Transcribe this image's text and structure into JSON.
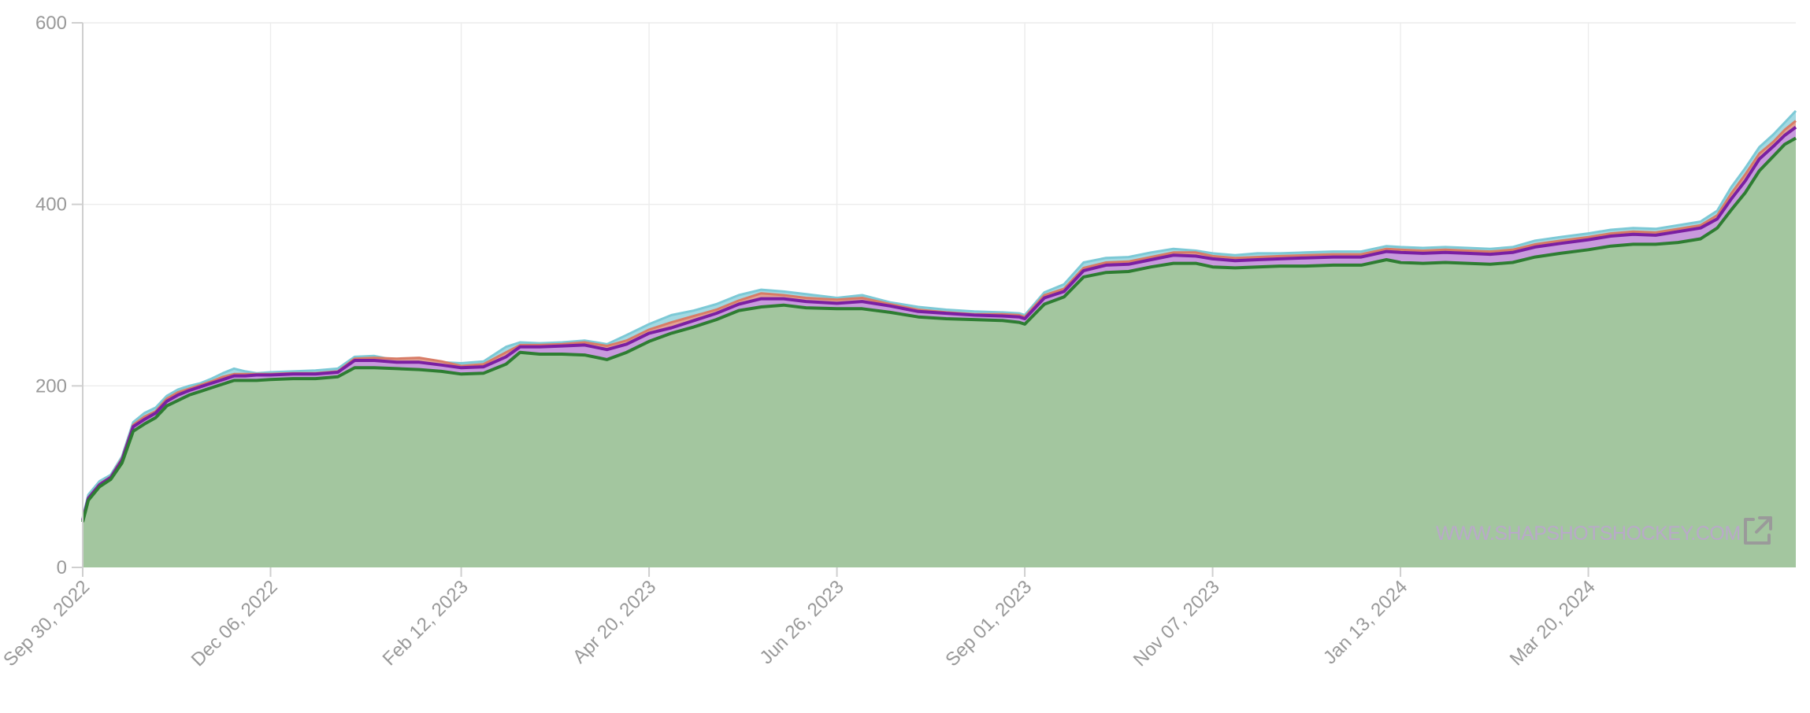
{
  "chart_data": {
    "type": "area",
    "title": "",
    "xlabel": "",
    "ylabel": "",
    "ylim": [
      0,
      600
    ],
    "yticks": [
      0,
      200,
      400,
      600
    ],
    "ytick_labels": [
      "0",
      "200",
      "400",
      "600"
    ],
    "xlim": [
      "2022-09-30",
      "2024-06-02"
    ],
    "xtick_dates": [
      "2022-09-30",
      "2022-12-06",
      "2023-02-12",
      "2023-04-20",
      "2023-06-26",
      "2023-09-01",
      "2023-11-07",
      "2024-01-13",
      "2024-03-20"
    ],
    "xtick_labels": [
      "Sep 30, 2022",
      "Dec 06, 2022",
      "Feb 12, 2023",
      "Apr 20, 2023",
      "Jun 26, 2023",
      "Sep 01, 2023",
      "Nov 07, 2023",
      "Jan 13, 2024",
      "Mar 20, 2024"
    ],
    "grid": true,
    "legend": "none",
    "x": [
      "2022-09-30",
      "2022-10-02",
      "2022-10-06",
      "2022-10-10",
      "2022-10-14",
      "2022-10-18",
      "2022-10-22",
      "2022-10-26",
      "2022-10-30",
      "2022-11-03",
      "2022-11-07",
      "2022-11-11",
      "2022-11-15",
      "2022-11-19",
      "2022-11-23",
      "2022-11-27",
      "2022-12-01",
      "2022-12-06",
      "2022-12-14",
      "2022-12-22",
      "2022-12-30",
      "2023-01-05",
      "2023-01-12",
      "2023-01-20",
      "2023-01-28",
      "2023-02-05",
      "2023-02-12",
      "2023-02-20",
      "2023-02-28",
      "2023-03-05",
      "2023-03-12",
      "2023-03-20",
      "2023-03-28",
      "2023-04-05",
      "2023-04-12",
      "2023-04-20",
      "2023-04-28",
      "2023-05-06",
      "2023-05-14",
      "2023-05-22",
      "2023-05-30",
      "2023-06-07",
      "2023-06-15",
      "2023-06-26",
      "2023-07-05",
      "2023-07-15",
      "2023-07-25",
      "2023-08-04",
      "2023-08-14",
      "2023-08-24",
      "2023-08-30",
      "2023-09-01",
      "2023-09-08",
      "2023-09-15",
      "2023-09-22",
      "2023-09-30",
      "2023-10-08",
      "2023-10-16",
      "2023-10-24",
      "2023-11-01",
      "2023-11-07",
      "2023-11-15",
      "2023-11-23",
      "2023-12-01",
      "2023-12-10",
      "2023-12-20",
      "2023-12-30",
      "2024-01-08",
      "2024-01-13",
      "2024-01-21",
      "2024-01-29",
      "2024-02-06",
      "2024-02-14",
      "2024-02-22",
      "2024-03-01",
      "2024-03-10",
      "2024-03-20",
      "2024-03-28",
      "2024-04-05",
      "2024-04-13",
      "2024-04-21",
      "2024-04-29",
      "2024-05-05",
      "2024-05-10",
      "2024-05-15",
      "2024-05-20",
      "2024-05-25",
      "2024-05-29",
      "2024-06-02"
    ],
    "series": [
      {
        "color": "#9ed7e0",
        "stroke": "#7cc9d6",
        "values": [
          55,
          80,
          95,
          102,
          122,
          160,
          170,
          176,
          189,
          196,
          200,
          203,
          208,
          214,
          219,
          216,
          214,
          215,
          216,
          217,
          219,
          232,
          233,
          228,
          229,
          226,
          225,
          227,
          243,
          248,
          247,
          248,
          250,
          246,
          256,
          268,
          278,
          283,
          290,
          300,
          306,
          304,
          301,
          297,
          300,
          292,
          287,
          284,
          282,
          281,
          280,
          278,
          303,
          312,
          336,
          341,
          342,
          347,
          351,
          349,
          346,
          344,
          346,
          346,
          347,
          348,
          348,
          354,
          353,
          352,
          353,
          352,
          351,
          353,
          360,
          364,
          368,
          372,
          374,
          373,
          377,
          381,
          393,
          419,
          440,
          463,
          477,
          490,
          503
        ]
      },
      {
        "color": "#e6a08f",
        "stroke": "#d87c66",
        "values": [
          53,
          77,
          92,
          100,
          120,
          157,
          166,
          172,
          186,
          193,
          197,
          201,
          205,
          210,
          213,
          213,
          213,
          213,
          214,
          214,
          216,
          230,
          231,
          230,
          231,
          227,
          222,
          224,
          237,
          245,
          245,
          246,
          248,
          244,
          250,
          262,
          270,
          277,
          284,
          294,
          302,
          300,
          297,
          295,
          297,
          290,
          284,
          281,
          279,
          279,
          278,
          276,
          300,
          307,
          330,
          336,
          337,
          342,
          347,
          347,
          343,
          341,
          342,
          343,
          344,
          345,
          345,
          351,
          350,
          349,
          350,
          349,
          348,
          350,
          356,
          360,
          364,
          368,
          370,
          369,
          373,
          377,
          388,
          412,
          433,
          456,
          469,
          482,
          492
        ]
      },
      {
        "color": "#c69ae0",
        "stroke": "#7a1fa2",
        "values": [
          52,
          76,
          91,
          99,
          118,
          155,
          163,
          170,
          183,
          190,
          195,
          199,
          203,
          207,
          211,
          211,
          212,
          212,
          213,
          213,
          215,
          228,
          228,
          226,
          226,
          223,
          220,
          221,
          232,
          243,
          243,
          244,
          245,
          240,
          246,
          258,
          264,
          272,
          280,
          290,
          296,
          296,
          293,
          291,
          293,
          288,
          282,
          280,
          278,
          277,
          276,
          274,
          297,
          304,
          327,
          333,
          334,
          339,
          344,
          343,
          340,
          338,
          339,
          340,
          341,
          342,
          342,
          348,
          347,
          346,
          347,
          346,
          345,
          347,
          353,
          357,
          361,
          365,
          367,
          366,
          370,
          374,
          384,
          406,
          426,
          450,
          464,
          476,
          485
        ]
      },
      {
        "color": "#a3c69f",
        "stroke": "#2e7d32",
        "values": [
          50,
          74,
          89,
          97,
          115,
          150,
          158,
          165,
          178,
          184,
          190,
          194,
          198,
          202,
          206,
          206,
          206,
          207,
          208,
          208,
          210,
          220,
          220,
          219,
          218,
          216,
          213,
          214,
          224,
          237,
          235,
          235,
          234,
          229,
          237,
          249,
          258,
          265,
          273,
          283,
          287,
          289,
          286,
          285,
          285,
          281,
          276,
          274,
          273,
          272,
          270,
          268,
          290,
          298,
          320,
          325,
          326,
          331,
          335,
          335,
          331,
          330,
          331,
          332,
          332,
          333,
          333,
          339,
          336,
          335,
          336,
          335,
          334,
          336,
          342,
          346,
          350,
          354,
          356,
          356,
          358,
          362,
          374,
          394,
          413,
          437,
          453,
          466,
          473
        ]
      }
    ],
    "watermark": "WWW.SHAPSHOTSHOCKEY.COM",
    "icons": [
      "external-link-icon"
    ]
  }
}
